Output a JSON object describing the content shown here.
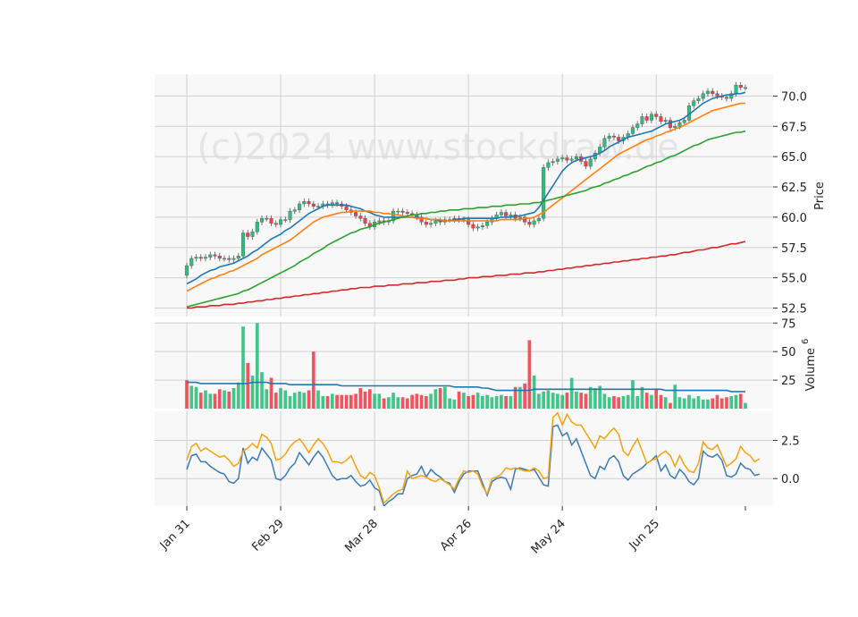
{
  "watermark": "(c)2024 www.stockdraw.de",
  "colors": {
    "up": "#2dbf7c",
    "down": "#f0414a",
    "ma1": "#1f77b4",
    "ma2": "#ff7f0e",
    "ma3": "#2ca02c",
    "ma4": "#d62728",
    "osc1": "#3a7ab8",
    "osc2": "#f5a20f"
  },
  "chart_data": [
    {
      "type": "candlestick",
      "ylabel": "Price",
      "ylim": [
        51.8,
        71.8
      ],
      "yticks": [
        "52.5",
        "55.0",
        "57.5",
        "60.0",
        "62.5",
        "65.0",
        "67.5",
        "70.0"
      ],
      "xticks": [
        "Jan 31",
        "Feb 29",
        "Mar 28",
        "Apr 26",
        "May 24",
        "Jun 25"
      ],
      "xtick_index": [
        0,
        20,
        40,
        60,
        80,
        100
      ],
      "n_days": 120,
      "close": [
        56.0,
        56.6,
        56.7,
        56.6,
        56.7,
        56.9,
        56.8,
        56.6,
        56.6,
        56.5,
        56.6,
        56.8,
        58.7,
        58.4,
        58.8,
        59.6,
        59.9,
        59.9,
        59.5,
        59.4,
        59.8,
        59.8,
        60.5,
        60.6,
        61.1,
        61.3,
        61.1,
        60.9,
        60.9,
        61.1,
        61.0,
        61.2,
        61.1,
        60.9,
        60.6,
        60.4,
        60.1,
        59.9,
        59.5,
        59.2,
        59.6,
        59.7,
        59.6,
        59.7,
        60.5,
        60.5,
        60.4,
        60.3,
        60.2,
        60.0,
        59.6,
        59.4,
        59.5,
        59.7,
        59.6,
        59.8,
        59.8,
        59.9,
        59.8,
        59.8,
        59.4,
        59.1,
        59.2,
        59.3,
        59.6,
        59.9,
        60.2,
        60.4,
        60.1,
        60.2,
        59.9,
        60.0,
        59.6,
        59.4,
        59.7,
        59.9,
        64.1,
        64.5,
        64.6,
        64.8,
        64.9,
        64.7,
        64.8,
        65.0,
        64.6,
        64.2,
        64.8,
        65.3,
        65.8,
        66.5,
        66.7,
        66.6,
        66.3,
        66.6,
        66.9,
        67.4,
        67.7,
        68.3,
        68.0,
        68.5,
        68.3,
        67.9,
        68.0,
        67.4,
        67.5,
        67.8,
        68.0,
        69.2,
        69.6,
        69.8,
        70.2,
        70.4,
        70.2,
        70.0,
        69.9,
        69.8,
        70.2,
        70.9,
        70.7,
        70.7
      ],
      "ma_lines": [
        {
          "name": "MA-1",
          "values": [
            54.5,
            54.7,
            54.9,
            55.2,
            55.4,
            55.6,
            55.7,
            55.9,
            56.0,
            56.1,
            56.2,
            56.4,
            56.6,
            56.8,
            57.1,
            57.3,
            57.6,
            57.9,
            58.2,
            58.4,
            58.6,
            58.9,
            59.1,
            59.4,
            59.7,
            60.0,
            60.3,
            60.5,
            60.7,
            60.9,
            61.0,
            61.0,
            61.0,
            61.0,
            61.0,
            60.9,
            60.8,
            60.7,
            60.5,
            60.4,
            60.2,
            60.1,
            60.0,
            60.0,
            60.0,
            60.0,
            60.0,
            60.0,
            60.0,
            60.0,
            59.9,
            59.9,
            59.8,
            59.8,
            59.7,
            59.7,
            59.7,
            59.8,
            59.8,
            59.9,
            59.9,
            59.9,
            59.9,
            59.9,
            59.9,
            59.9,
            59.9,
            60.0,
            60.0,
            60.0,
            60.1,
            60.1,
            60.2,
            60.3,
            60.4,
            60.8,
            61.4,
            62.0,
            62.6,
            63.2,
            63.8,
            64.2,
            64.5,
            64.7,
            64.8,
            64.9,
            65.0,
            65.1,
            65.3,
            65.5,
            65.8,
            66.0,
            66.2,
            66.4,
            66.6,
            66.7,
            66.8,
            66.9,
            67.0,
            67.1,
            67.3,
            67.5,
            67.7,
            67.8,
            67.9,
            68.0,
            68.2,
            68.5,
            68.8,
            69.1,
            69.4,
            69.6,
            69.8,
            69.9,
            70.0,
            70.1,
            70.1,
            70.2,
            70.2,
            70.3
          ]
        },
        {
          "name": "MA-2",
          "values": [
            53.9,
            54.1,
            54.3,
            54.5,
            54.7,
            54.9,
            55.0,
            55.2,
            55.3,
            55.5,
            55.6,
            55.8,
            56.0,
            56.2,
            56.4,
            56.6,
            56.9,
            57.1,
            57.3,
            57.5,
            57.7,
            57.9,
            58.1,
            58.4,
            58.7,
            59.0,
            59.3,
            59.6,
            59.8,
            60.0,
            60.1,
            60.2,
            60.3,
            60.4,
            60.4,
            60.5,
            60.5,
            60.5,
            60.5,
            60.5,
            60.4,
            60.4,
            60.3,
            60.3,
            60.2,
            60.2,
            60.1,
            60.0,
            60.0,
            59.9,
            59.9,
            59.9,
            59.8,
            59.8,
            59.8,
            59.7,
            59.7,
            59.7,
            59.7,
            59.7,
            59.7,
            59.7,
            59.7,
            59.7,
            59.7,
            59.7,
            59.7,
            59.8,
            59.8,
            59.8,
            59.8,
            59.8,
            59.9,
            59.9,
            60.0,
            60.2,
            60.4,
            60.7,
            61.0,
            61.3,
            61.6,
            61.9,
            62.2,
            62.5,
            62.8,
            63.1,
            63.4,
            63.7,
            64.0,
            64.3,
            64.6,
            64.9,
            65.2,
            65.4,
            65.6,
            65.8,
            66.0,
            66.2,
            66.4,
            66.5,
            66.7,
            66.8,
            67.0,
            67.1,
            67.3,
            67.4,
            67.6,
            67.8,
            68.0,
            68.2,
            68.4,
            68.6,
            68.8,
            68.9,
            69.0,
            69.1,
            69.2,
            69.3,
            69.4,
            69.4
          ]
        },
        {
          "name": "MA-3",
          "values": [
            52.6,
            52.7,
            52.8,
            52.9,
            53.0,
            53.1,
            53.2,
            53.3,
            53.4,
            53.5,
            53.6,
            53.7,
            53.9,
            54.0,
            54.2,
            54.4,
            54.6,
            54.8,
            55.0,
            55.2,
            55.4,
            55.6,
            55.8,
            56.0,
            56.3,
            56.5,
            56.7,
            57.0,
            57.2,
            57.4,
            57.7,
            57.9,
            58.1,
            58.3,
            58.5,
            58.7,
            58.8,
            59.0,
            59.1,
            59.2,
            59.4,
            59.5,
            59.6,
            59.7,
            59.8,
            59.9,
            60.0,
            60.1,
            60.2,
            60.2,
            60.3,
            60.3,
            60.4,
            60.4,
            60.5,
            60.5,
            60.6,
            60.6,
            60.6,
            60.7,
            60.7,
            60.7,
            60.8,
            60.8,
            60.8,
            60.9,
            60.9,
            60.9,
            61.0,
            61.0,
            61.0,
            61.1,
            61.1,
            61.1,
            61.2,
            61.2,
            61.3,
            61.4,
            61.5,
            61.6,
            61.7,
            61.8,
            61.9,
            62.0,
            62.1,
            62.2,
            62.4,
            62.5,
            62.6,
            62.8,
            62.9,
            63.1,
            63.2,
            63.4,
            63.5,
            63.7,
            63.8,
            64.0,
            64.2,
            64.3,
            64.5,
            64.6,
            64.8,
            65.0,
            65.1,
            65.3,
            65.5,
            65.7,
            65.9,
            66.0,
            66.2,
            66.4,
            66.5,
            66.6,
            66.7,
            66.8,
            66.9,
            67.0,
            67.0,
            67.1
          ]
        },
        {
          "name": "MA-4",
          "values": [
            52.5,
            52.5,
            52.6,
            52.6,
            52.6,
            52.7,
            52.7,
            52.7,
            52.8,
            52.8,
            52.8,
            52.9,
            52.9,
            53.0,
            53.0,
            53.1,
            53.1,
            53.2,
            53.2,
            53.3,
            53.3,
            53.4,
            53.4,
            53.5,
            53.5,
            53.6,
            53.6,
            53.7,
            53.7,
            53.8,
            53.8,
            53.9,
            53.9,
            54.0,
            54.0,
            54.1,
            54.1,
            54.2,
            54.2,
            54.2,
            54.3,
            54.3,
            54.3,
            54.4,
            54.4,
            54.4,
            54.5,
            54.5,
            54.5,
            54.6,
            54.6,
            54.6,
            54.7,
            54.7,
            54.7,
            54.8,
            54.8,
            54.8,
            54.9,
            54.9,
            55.0,
            55.0,
            55.0,
            55.1,
            55.1,
            55.1,
            55.2,
            55.2,
            55.2,
            55.3,
            55.3,
            55.3,
            55.4,
            55.4,
            55.4,
            55.5,
            55.5,
            55.6,
            55.6,
            55.7,
            55.7,
            55.8,
            55.8,
            55.9,
            55.9,
            56.0,
            56.0,
            56.1,
            56.1,
            56.2,
            56.2,
            56.3,
            56.3,
            56.4,
            56.4,
            56.5,
            56.5,
            56.6,
            56.6,
            56.7,
            56.7,
            56.8,
            56.8,
            56.9,
            56.9,
            57.0,
            57.1,
            57.1,
            57.2,
            57.3,
            57.3,
            57.4,
            57.5,
            57.5,
            57.6,
            57.7,
            57.8,
            57.8,
            57.9,
            58.0
          ]
        }
      ]
    },
    {
      "type": "bar",
      "ylabel": "Volume",
      "ylabel_exponent": "6",
      "ylim": [
        0,
        76
      ],
      "yticks": [
        "25",
        "50",
        "75"
      ],
      "volumes": [
        25,
        20,
        19,
        14,
        16,
        13,
        13,
        17,
        16,
        15,
        18,
        23,
        72,
        40,
        29,
        75,
        32,
        17,
        27,
        14,
        18,
        16,
        11,
        14,
        15,
        14,
        16,
        50,
        16,
        11,
        11,
        13,
        12,
        12,
        12,
        12,
        13,
        18,
        15,
        17,
        13,
        13,
        9,
        10,
        14,
        10,
        10,
        9,
        12,
        13,
        12,
        11,
        13,
        17,
        18,
        19,
        9,
        8,
        15,
        14,
        11,
        12,
        14,
        11,
        12,
        10,
        11,
        12,
        11,
        11,
        19,
        19,
        22,
        60,
        29,
        13,
        15,
        16,
        14,
        13,
        12,
        14,
        27,
        15,
        14,
        13,
        19,
        18,
        20,
        13,
        10,
        11,
        10,
        11,
        12,
        25,
        11,
        19,
        14,
        12,
        17,
        12,
        10,
        5,
        21,
        10,
        9,
        12,
        9,
        11,
        8,
        8,
        9,
        12,
        9,
        10,
        11,
        12,
        13,
        5
      ],
      "volume_ma": [
        23,
        23,
        23,
        22,
        22,
        22,
        22,
        22,
        22,
        22,
        22,
        22,
        22,
        22,
        23,
        23,
        23,
        23,
        22,
        22,
        22,
        22,
        21,
        21,
        21,
        21,
        21,
        21,
        21,
        21,
        21,
        21,
        21,
        20,
        20,
        20,
        20,
        20,
        20,
        20,
        20,
        20,
        20,
        20,
        20,
        20,
        20,
        20,
        20,
        20,
        20,
        20,
        20,
        20,
        20,
        20,
        20,
        19,
        19,
        19,
        19,
        19,
        19,
        18,
        18,
        17,
        16,
        16,
        16,
        16,
        16,
        16,
        16,
        16,
        17,
        17,
        17,
        17,
        17,
        17,
        17,
        17,
        17,
        17,
        17,
        17,
        17,
        17,
        17,
        17,
        17,
        17,
        17,
        17,
        17,
        17,
        17,
        17,
        17,
        17,
        17,
        17,
        16,
        16,
        16,
        16,
        16,
        16,
        16,
        16,
        16,
        16,
        16,
        16,
        16,
        16,
        15,
        15,
        15,
        15
      ]
    },
    {
      "type": "line",
      "ylim": [
        -1.8,
        4.4
      ],
      "yticks": [
        "0.0",
        "2.5"
      ],
      "series": [
        {
          "values": [
            0.6,
            1.5,
            1.6,
            1.1,
            1.1,
            0.8,
            0.6,
            0.4,
            0.3,
            -0.2,
            -0.3,
            0.0,
            2.0,
            1.0,
            1.4,
            1.2,
            2.0,
            1.6,
            1.2,
            0.0,
            -0.1,
            0.2,
            0.7,
            1.0,
            1.7,
            1.3,
            0.9,
            1.4,
            1.8,
            1.4,
            0.8,
            0.2,
            -0.1,
            0.0,
            0.0,
            0.2,
            -0.2,
            -0.5,
            -0.4,
            -0.1,
            -0.6,
            -0.8,
            -1.8,
            -1.5,
            -1.3,
            -1.0,
            -1.0,
            0.0,
            0.2,
            0.3,
            0.8,
            0.1,
            0.6,
            0.3,
            0.1,
            -0.2,
            -0.3,
            -0.9,
            -0.2,
            0.3,
            0.5,
            0.5,
            0.5,
            -0.3,
            -1.1,
            -0.2,
            0.0,
            0.1,
            0.0,
            -0.7,
            0.6,
            0.7,
            0.6,
            0.5,
            0.6,
            0.1,
            -0.4,
            -0.5,
            3.4,
            3.5,
            2.8,
            3.0,
            2.2,
            2.6,
            1.8,
            1.0,
            0.2,
            0.0,
            0.8,
            0.6,
            1.3,
            1.5,
            1.1,
            0.2,
            -0.1,
            0.3,
            0.5,
            0.7,
            1.0,
            1.2,
            1.5,
            0.5,
            0.9,
            0.2,
            0.0,
            0.6,
            0.3,
            -0.2,
            -0.4,
            0.0,
            1.8,
            1.5,
            1.4,
            1.6,
            1.2,
            0.2,
            0.1,
            0.3,
            1.0,
            0.7,
            0.6,
            0.2,
            0.3
          ]
        },
        {
          "values": [
            1.2,
            2.1,
            2.3,
            1.8,
            2.0,
            1.8,
            1.6,
            1.4,
            1.5,
            1.2,
            0.8,
            1.0,
            1.8,
            2.0,
            2.3,
            2.0,
            2.9,
            2.7,
            2.3,
            1.2,
            1.3,
            1.6,
            2.1,
            2.4,
            2.6,
            2.2,
            1.7,
            2.2,
            2.6,
            2.3,
            1.8,
            1.1,
            1.1,
            1.0,
            1.2,
            1.5,
            0.8,
            0.2,
            0.0,
            0.4,
            0.2,
            -0.6,
            -1.6,
            -1.3,
            -1.0,
            -0.8,
            -0.7,
            0.5,
            0.0,
            0.1,
            0.2,
            0.1,
            -0.1,
            -0.2,
            0.0,
            -0.2,
            -0.4,
            -0.7,
            0.0,
            0.5,
            0.4,
            0.5,
            0.3,
            -0.5,
            -1.0,
            0.0,
            0.1,
            0.3,
            0.7,
            0.6,
            0.7,
            0.6,
            0.5,
            0.5,
            0.7,
            0.5,
            0.0,
            0.1,
            4.0,
            4.3,
            3.5,
            4.2,
            3.7,
            3.5,
            3.5,
            3.0,
            2.5,
            2.0,
            2.8,
            2.6,
            3.0,
            3.3,
            2.9,
            1.8,
            1.5,
            2.1,
            2.6,
            1.8,
            1.0,
            1.2,
            1.3,
            1.6,
            1.8,
            1.5,
            0.8,
            1.5,
            0.9,
            0.5,
            0.4,
            1.0,
            2.4,
            2.0,
            1.9,
            2.2,
            1.5,
            0.8,
            1.0,
            1.3,
            2.1,
            1.7,
            1.5,
            1.1,
            1.3
          ]
        }
      ]
    }
  ]
}
